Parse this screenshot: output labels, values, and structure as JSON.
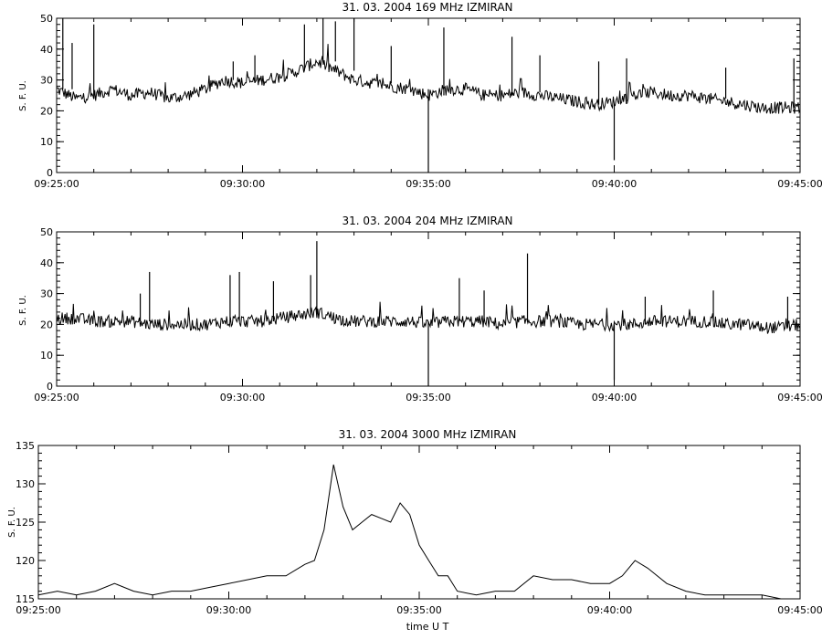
{
  "chart_data": [
    {
      "type": "line",
      "title": "31.  03.  2004   169 MHz   IZMIRAN",
      "xlabel": "",
      "ylabel": "S. F. U.",
      "xlim": [
        "09:25:00",
        "09:45:00"
      ],
      "ylim": [
        0,
        50
      ],
      "xticks": [
        "09:25:00",
        "09:30:00",
        "09:35:00",
        "09:40:00",
        "09:45:00"
      ],
      "yticks": [
        0,
        10,
        20,
        30,
        40,
        50
      ],
      "grid": false,
      "series": [
        {
          "x": [
            "09:25:00",
            "09:25:30",
            "09:26:00",
            "09:26:30",
            "09:27:00",
            "09:27:30",
            "09:28:00",
            "09:28:30",
            "09:29:00",
            "09:29:30",
            "09:30:00",
            "09:30:30",
            "09:31:00",
            "09:31:30",
            "09:32:00",
            "09:32:30",
            "09:33:00",
            "09:33:30",
            "09:34:00",
            "09:34:30",
            "09:35:00",
            "09:35:30",
            "09:36:00",
            "09:36:30",
            "09:37:00",
            "09:37:30",
            "09:38:00",
            "09:38:30",
            "09:39:00",
            "09:39:30",
            "09:40:00",
            "09:40:30",
            "09:41:00",
            "09:41:30",
            "09:42:00",
            "09:42:30",
            "09:43:00",
            "09:43:30",
            "09:44:00",
            "09:44:30",
            "09:45:00"
          ],
          "y": [
            27,
            24,
            25,
            27,
            25,
            26,
            24,
            25,
            27,
            30,
            29,
            30,
            31,
            33,
            36,
            33,
            30,
            29,
            28,
            27,
            25,
            27,
            27,
            25,
            25,
            26,
            25,
            24,
            23,
            22,
            23,
            25,
            26,
            25,
            25,
            24,
            23,
            22,
            21,
            21,
            21
          ]
        }
      ],
      "spikes": [
        {
          "x": "09:25:10",
          "y": 50
        },
        {
          "x": "09:25:25",
          "y": 42
        },
        {
          "x": "09:26:00",
          "y": 48
        },
        {
          "x": "09:29:45",
          "y": 36
        },
        {
          "x": "09:30:20",
          "y": 38
        },
        {
          "x": "09:31:40",
          "y": 48
        },
        {
          "x": "09:32:10",
          "y": 50
        },
        {
          "x": "09:32:30",
          "y": 49
        },
        {
          "x": "09:33:00",
          "y": 50
        },
        {
          "x": "09:34:00",
          "y": 41
        },
        {
          "x": "09:35:00",
          "y": 0
        },
        {
          "x": "09:35:25",
          "y": 47
        },
        {
          "x": "09:37:15",
          "y": 44
        },
        {
          "x": "09:38:00",
          "y": 38
        },
        {
          "x": "09:39:35",
          "y": 36
        },
        {
          "x": "09:40:00",
          "y": 4
        },
        {
          "x": "09:40:20",
          "y": 37
        },
        {
          "x": "09:43:00",
          "y": 34
        },
        {
          "x": "09:44:50",
          "y": 37
        }
      ]
    },
    {
      "type": "line",
      "title": "31.  03.  2004   204 MHz   IZMIRAN",
      "xlabel": "",
      "ylabel": "S. F. U.",
      "xlim": [
        "09:25:00",
        "09:45:00"
      ],
      "ylim": [
        0,
        50
      ],
      "xticks": [
        "09:25:00",
        "09:30:00",
        "09:35:00",
        "09:40:00",
        "09:45:00"
      ],
      "yticks": [
        0,
        10,
        20,
        30,
        40,
        50
      ],
      "grid": false,
      "series": [
        {
          "x": [
            "09:25:00",
            "09:25:30",
            "09:26:00",
            "09:26:30",
            "09:27:00",
            "09:27:30",
            "09:28:00",
            "09:28:30",
            "09:29:00",
            "09:29:30",
            "09:30:00",
            "09:30:30",
            "09:31:00",
            "09:31:30",
            "09:32:00",
            "09:32:30",
            "09:33:00",
            "09:33:30",
            "09:34:00",
            "09:34:30",
            "09:35:00",
            "09:35:30",
            "09:36:00",
            "09:36:30",
            "09:37:00",
            "09:37:30",
            "09:38:00",
            "09:38:30",
            "09:39:00",
            "09:39:30",
            "09:40:00",
            "09:40:30",
            "09:41:00",
            "09:41:30",
            "09:42:00",
            "09:42:30",
            "09:43:00",
            "09:43:30",
            "09:44:00",
            "09:44:30",
            "09:45:00"
          ],
          "y": [
            22,
            22,
            21,
            21,
            21,
            20,
            20,
            20,
            20,
            21,
            21,
            21,
            22,
            23,
            24,
            22,
            21,
            21,
            21,
            21,
            20,
            21,
            21,
            21,
            20,
            21,
            21,
            21,
            20,
            20,
            20,
            20,
            21,
            21,
            21,
            21,
            20,
            20,
            19,
            19,
            20
          ]
        }
      ],
      "spikes": [
        {
          "x": "09:27:15",
          "y": 30
        },
        {
          "x": "09:27:30",
          "y": 37
        },
        {
          "x": "09:29:40",
          "y": 36
        },
        {
          "x": "09:29:55",
          "y": 37
        },
        {
          "x": "09:30:50",
          "y": 34
        },
        {
          "x": "09:31:50",
          "y": 36
        },
        {
          "x": "09:32:00",
          "y": 47
        },
        {
          "x": "09:35:00",
          "y": 0
        },
        {
          "x": "09:35:50",
          "y": 35
        },
        {
          "x": "09:36:30",
          "y": 31
        },
        {
          "x": "09:37:40",
          "y": 43
        },
        {
          "x": "09:40:00",
          "y": 2
        },
        {
          "x": "09:40:50",
          "y": 29
        },
        {
          "x": "09:42:40",
          "y": 31
        },
        {
          "x": "09:44:40",
          "y": 29
        }
      ]
    },
    {
      "type": "line",
      "title": "31.  03.  2004    3000 MHz    IZMIRAN",
      "xlabel": "time  U T",
      "ylabel": "S. F. U.",
      "xlim": [
        "09:25:00",
        "09:45:00"
      ],
      "ylim": [
        115,
        135
      ],
      "xticks": [
        "09:25:00",
        "09:30:00",
        "09:35:00",
        "09:40:00",
        "09:45:00"
      ],
      "yticks": [
        115,
        120,
        125,
        130,
        135
      ],
      "grid": false,
      "series": [
        {
          "x": [
            "09:25:00",
            "09:25:30",
            "09:26:00",
            "09:26:30",
            "09:27:00",
            "09:27:30",
            "09:28:00",
            "09:28:30",
            "09:29:00",
            "09:29:30",
            "09:30:00",
            "09:30:30",
            "09:31:00",
            "09:31:30",
            "09:32:00",
            "09:32:15",
            "09:32:30",
            "09:32:45",
            "09:33:00",
            "09:33:15",
            "09:33:30",
            "09:33:45",
            "09:34:00",
            "09:34:15",
            "09:34:30",
            "09:34:45",
            "09:35:00",
            "09:35:15",
            "09:35:30",
            "09:35:45",
            "09:36:00",
            "09:36:30",
            "09:37:00",
            "09:37:30",
            "09:38:00",
            "09:38:30",
            "09:39:00",
            "09:39:30",
            "09:40:00",
            "09:40:20",
            "09:40:40",
            "09:41:00",
            "09:41:30",
            "09:42:00",
            "09:42:30",
            "09:43:00",
            "09:43:30",
            "09:44:00",
            "09:44:30",
            "09:45:00"
          ],
          "y": [
            115.5,
            116,
            115.5,
            116,
            117,
            116,
            115.5,
            116,
            116,
            116.5,
            117,
            117.5,
            118,
            118,
            119.5,
            120,
            124,
            132.5,
            127,
            124,
            125,
            126,
            125.5,
            125,
            127.5,
            126,
            122,
            120,
            118,
            118,
            116,
            115.5,
            116,
            116,
            118,
            117.5,
            117.5,
            117,
            117,
            118,
            120,
            119,
            117,
            116,
            115.5,
            115.5,
            115.5,
            115.5,
            115,
            115
          ]
        }
      ]
    }
  ]
}
